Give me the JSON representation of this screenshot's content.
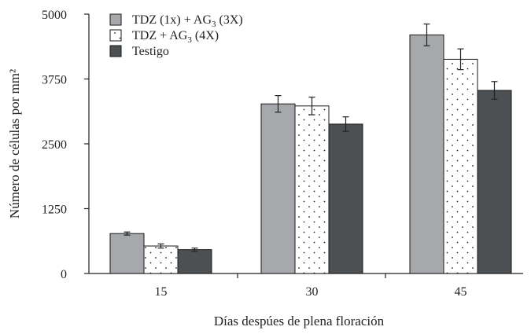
{
  "chart_data": {
    "type": "bar",
    "categories": [
      "15",
      "30",
      "45"
    ],
    "series": [
      {
        "name": "TDZ (1x) + AG3 (3X)",
        "legend_parts": [
          "TDZ (1x) +",
          "AG",
          "3",
          "(3X)"
        ],
        "values": [
          770,
          3270,
          4600
        ],
        "errors": [
          30,
          160,
          210
        ],
        "fill": "#a7a8ab",
        "pattern": "solid"
      },
      {
        "name": "TDZ + AG3 (4X)",
        "legend_parts": [
          "TDZ + AG",
          "3",
          "(4X)"
        ],
        "values": [
          530,
          3230,
          4130
        ],
        "errors": [
          40,
          170,
          200
        ],
        "fill": "#ffffff",
        "pattern": "dots"
      },
      {
        "name": "Testigo",
        "legend_parts": [
          "Testigo"
        ],
        "values": [
          460,
          2880,
          3530
        ],
        "errors": [
          30,
          140,
          170
        ],
        "fill": "#4d5052",
        "pattern": "solid"
      }
    ],
    "yticks": [
      0,
      1250,
      2500,
      3750,
      5000
    ],
    "ylim": [
      0,
      5000
    ],
    "xlabel": "Días despúes de plena floración",
    "ylabel": "Número de células por mm²",
    "legend_position": "top-left"
  }
}
